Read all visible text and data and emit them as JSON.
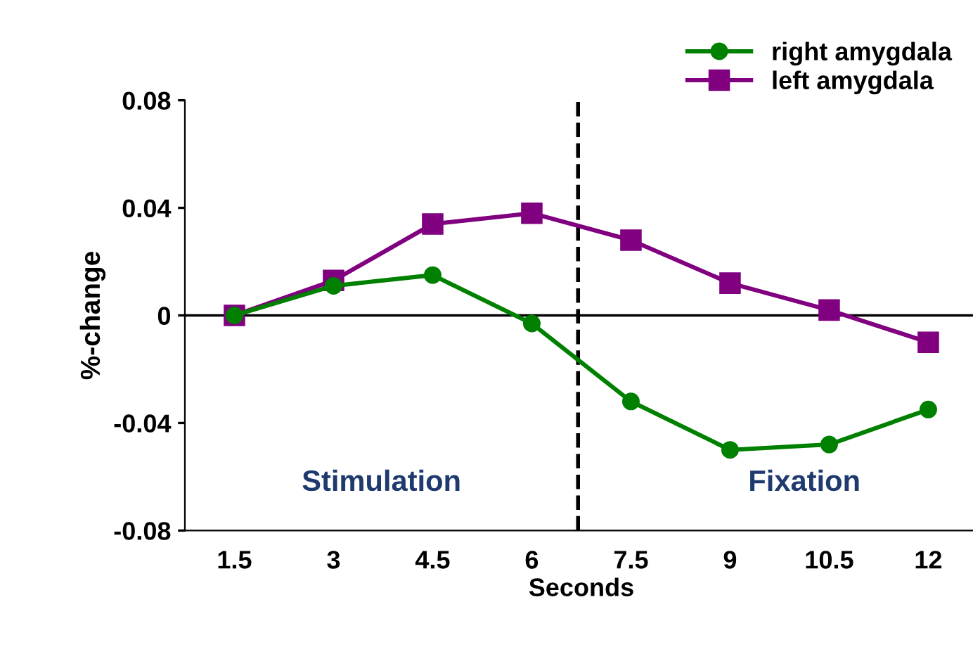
{
  "chart_data": {
    "type": "line",
    "xlabel": "Seconds",
    "ylabel": "%-change",
    "x": [
      1.5,
      3,
      4.5,
      6,
      7.5,
      9,
      10.5,
      12
    ],
    "series": [
      {
        "name": "right amygdala",
        "color": "#008000",
        "marker": "circle",
        "values": [
          0,
          0.011,
          0.015,
          -0.003,
          -0.032,
          -0.05,
          -0.048,
          -0.035
        ]
      },
      {
        "name": "left amygdala",
        "color": "#800080",
        "marker": "square",
        "values": [
          0,
          0.013,
          0.034,
          0.038,
          0.028,
          0.012,
          0.002,
          -0.01
        ]
      }
    ],
    "xlim": [
      0.75,
      12.75
    ],
    "xticks": [
      1.5,
      3,
      4.5,
      6,
      7.5,
      9,
      10.5,
      12
    ],
    "ylim": [
      -0.08,
      0.08
    ],
    "yticks": [
      {
        "value": -0.08,
        "label": "-0.08"
      },
      {
        "value": -0.04,
        "label": "-0.04"
      },
      0,
      {
        "value": 0.04,
        "label": "0.04"
      },
      {
        "value": 0.08,
        "label": "0.08"
      }
    ],
    "ref_lines": [
      {
        "axis": "y",
        "value": 0,
        "color": "#000000",
        "line_style": "solid"
      },
      {
        "axis": "x",
        "value": 6.7,
        "color": "#000000",
        "line_style": "dashed"
      }
    ],
    "annotations": [
      "Stimulation",
      "Fixation"
    ],
    "legend": "top right",
    "grid": false,
    "line_style": "solid"
  }
}
